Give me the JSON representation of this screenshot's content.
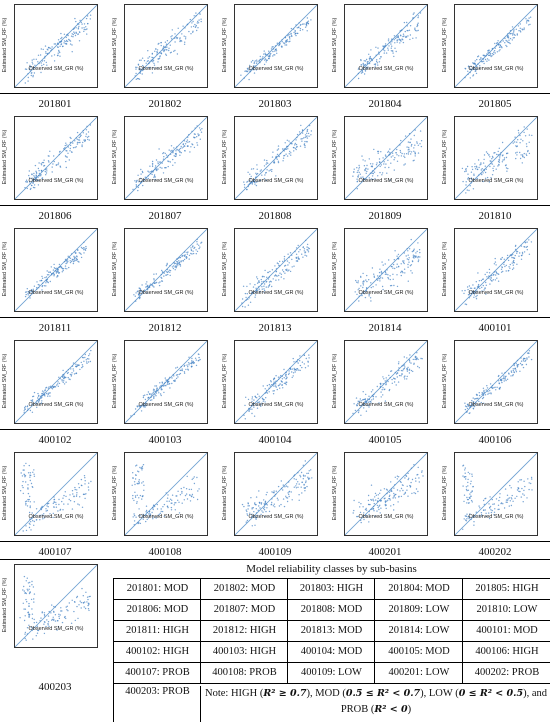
{
  "axis_labels": {
    "x": "Observed SM_GR (%)",
    "y": "Estimated SM_RF (%)"
  },
  "plots": [
    {
      "id": "201801",
      "k": "MOD"
    },
    {
      "id": "201802",
      "k": "MOD"
    },
    {
      "id": "201803",
      "k": "HIGH"
    },
    {
      "id": "201804",
      "k": "MOD"
    },
    {
      "id": "201805",
      "k": "HIGH"
    },
    {
      "id": "201806",
      "k": "MOD"
    },
    {
      "id": "201807",
      "k": "MOD"
    },
    {
      "id": "201808",
      "k": "MOD"
    },
    {
      "id": "201809",
      "k": "LOW"
    },
    {
      "id": "201810",
      "k": "LOW"
    },
    {
      "id": "201811",
      "k": "HIGH"
    },
    {
      "id": "201812",
      "k": "HIGH"
    },
    {
      "id": "201813",
      "k": "MOD"
    },
    {
      "id": "201814",
      "k": "LOW"
    },
    {
      "id": "400101",
      "k": "MOD"
    },
    {
      "id": "400102",
      "k": "HIGH"
    },
    {
      "id": "400103",
      "k": "HIGH"
    },
    {
      "id": "400104",
      "k": "MOD"
    },
    {
      "id": "400105",
      "k": "MOD"
    },
    {
      "id": "400106",
      "k": "HIGH"
    },
    {
      "id": "400107",
      "k": "PROB"
    },
    {
      "id": "400108",
      "k": "PROB"
    },
    {
      "id": "400109",
      "k": "LOW"
    },
    {
      "id": "400201",
      "k": "LOW"
    },
    {
      "id": "400202",
      "k": "PROB"
    },
    {
      "id": "400203",
      "k": "PROB"
    }
  ],
  "colors": {
    "points": "#4a86c5",
    "line": "#6b9fd1"
  },
  "table": {
    "title": "Model reliability classes by sub-basins",
    "rows": [
      [
        "201801: MOD",
        "201802: MOD",
        "201803: HIGH",
        "201804: MOD",
        "201805: HIGH"
      ],
      [
        "201806: MOD",
        "201807: MOD",
        "201808: MOD",
        "201809: LOW",
        "201810: LOW"
      ],
      [
        "201811: HIGH",
        "201812: HIGH",
        "201813: MOD",
        "201814: LOW",
        "400101: MOD"
      ],
      [
        "400102: HIGH",
        "400103: HIGH",
        "400104: MOD",
        "400105: MOD",
        "400106: HIGH"
      ],
      [
        "400107: PROB",
        "400108: PROB",
        "400109: LOW",
        "400201: LOW",
        "400202: PROB"
      ]
    ],
    "last_row_first": "400203: PROB",
    "note": {
      "prefix": "Note: HIGH (",
      "high": "R² ≥ 0.7",
      "mid1": "), MOD (",
      "mod": "0.5 ≤ R² < 0.7",
      "mid2": "), LOW (",
      "low": "0 ≤ R² < 0.5",
      "mid3": "), and PROB (",
      "prob": "R² < 0",
      "suffix": ")"
    }
  }
}
